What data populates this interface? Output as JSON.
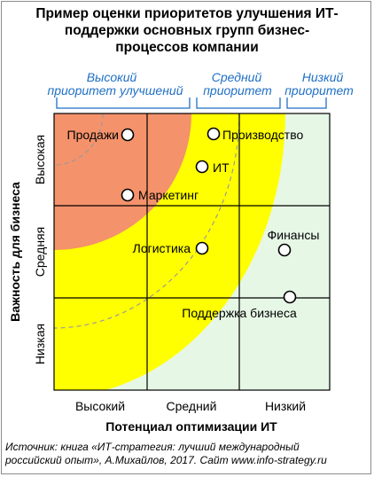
{
  "title_lines": [
    "Пример оценки приоритетов улучшения ИТ-",
    "поддержки основных групп бизнес-",
    "процессов компании"
  ],
  "priority_groups": [
    {
      "lines": [
        "Высокий",
        "приоритет улучшений"
      ]
    },
    {
      "lines": [
        "Средний",
        "приоритет"
      ]
    },
    {
      "lines": [
        "Низкий",
        "приоритет"
      ]
    }
  ],
  "y_axis_title": "Важность для бизнеса",
  "y_levels": [
    "Высокая",
    "Средняя",
    "Низкая"
  ],
  "x_axis_title": "Потенциал оптимизации ИТ",
  "x_levels": [
    "Высокий",
    "Средний",
    "Низкий"
  ],
  "processes": [
    {
      "label": "Продажи"
    },
    {
      "label": "Производство"
    },
    {
      "label": "ИТ"
    },
    {
      "label": "Маркетинг"
    },
    {
      "label": "Логистика"
    },
    {
      "label": "Финансы"
    },
    {
      "label": "Поддержка бизнеса"
    }
  ],
  "colors": {
    "high_priority_zone": "#f4926b",
    "medium_priority_zone": "#ffff00",
    "low_priority_zone": "#e6f7e6",
    "priority_label_text": "#1f6fc4",
    "grid_lines": "#000000",
    "dashed_lines": "#9b9b9b"
  },
  "source_lines": [
    "Источник: книга «ИТ-стратегия: лучший международный",
    "российский опыт», А.Михайлов, 2017.   Сайт www.info-strategy.ru"
  ]
}
